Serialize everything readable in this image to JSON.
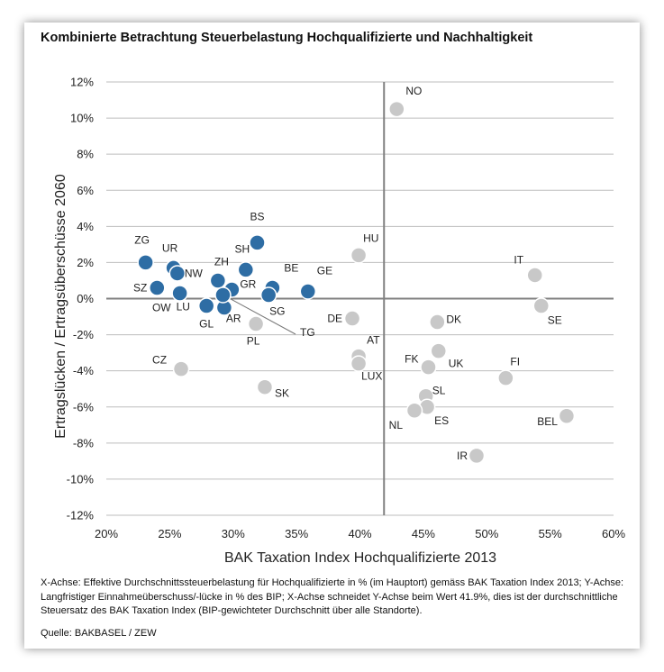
{
  "title": "Kombinierte Betrachtung Steuerbelastung Hochqualifizierte und Nachhaltigkeit",
  "footnote": "X-Achse: Effektive Durchschnittssteuerbelastung für Hochqualifizierte in % (im Hauptort) gemäss BAK Taxation Index 2013; Y-Achse: Langfristiger Einnahmeüberschuss/-lücke in % des BIP; X-Achse schneidet Y-Achse beim Wert 41.9%, dies ist der durchschnittliche Steuersatz des BAK Taxation Index (BIP-gewichteter Durchschnitt über alle Standorte).",
  "source": "Quelle: BAKBASEL / ZEW",
  "colors": {
    "swiss": "#2e6da4",
    "international": "#c8c8c8",
    "grid": "#bdbdbd",
    "axis": "#808080"
  },
  "chart_data": {
    "type": "scatter",
    "xlabel": "BAK Taxation Index Hochqualifizierte 2013",
    "ylabel": "Ertragslücken / Ertragsüberschüsse 2060",
    "xlim": [
      20,
      60
    ],
    "ylim": [
      -12,
      12
    ],
    "x_ticks": [
      "20%",
      "25%",
      "30%",
      "35%",
      "40%",
      "45%",
      "50%",
      "55%",
      "60%"
    ],
    "y_ticks": [
      "12%",
      "10%",
      "8%",
      "6%",
      "4%",
      "2%",
      "0%",
      "-2%",
      "-4%",
      "-6%",
      "-8%",
      "-10%",
      "-12%"
    ],
    "axis_cross_x": 41.9,
    "grid": "horizontal",
    "series": [
      {
        "color": "#2e6da4",
        "points": [
          {
            "label": "BS",
            "x": 31.9,
            "y": 3.1
          },
          {
            "label": "ZG",
            "x": 23.1,
            "y": 2.0
          },
          {
            "label": "UR",
            "x": 25.3,
            "y": 1.7
          },
          {
            "label": "NW",
            "x": 25.6,
            "y": 1.4
          },
          {
            "label": "SZ",
            "x": 24.0,
            "y": 0.6
          },
          {
            "label": "OW",
            "x": 25.8,
            "y": 0.3
          },
          {
            "label": "LU",
            "x": 25.8,
            "y": 0.3
          },
          {
            "label": "SH",
            "x": 31.0,
            "y": 1.6
          },
          {
            "label": "ZH",
            "x": 28.8,
            "y": 1.0
          },
          {
            "label": "GR",
            "x": 29.9,
            "y": 0.5
          },
          {
            "label": "BE",
            "x": 33.1,
            "y": 0.6
          },
          {
            "label": "SG",
            "x": 32.8,
            "y": 0.2
          },
          {
            "label": "GE",
            "x": 35.9,
            "y": 0.4
          },
          {
            "label": "GL",
            "x": 27.9,
            "y": -0.4
          },
          {
            "label": "AR",
            "x": 29.3,
            "y": -0.5
          },
          {
            "label": "TG",
            "x": 29.2,
            "y": 0.2
          }
        ]
      },
      {
        "color": "#c8c8c8",
        "points": [
          {
            "label": "NO",
            "x": 42.9,
            "y": 10.5
          },
          {
            "label": "HU",
            "x": 39.9,
            "y": 2.4
          },
          {
            "label": "IT",
            "x": 53.8,
            "y": 1.3
          },
          {
            "label": "SE",
            "x": 54.3,
            "y": -0.4
          },
          {
            "label": "DE",
            "x": 39.4,
            "y": -1.1
          },
          {
            "label": "DK",
            "x": 46.1,
            "y": -1.3
          },
          {
            "label": "PL",
            "x": 31.8,
            "y": -1.4
          },
          {
            "label": "CZ",
            "x": 25.9,
            "y": -3.9
          },
          {
            "label": "AT",
            "x": 39.9,
            "y": -3.2
          },
          {
            "label": "LUX",
            "x": 39.9,
            "y": -3.6
          },
          {
            "label": "FK",
            "x": 45.4,
            "y": -3.8
          },
          {
            "label": "UK",
            "x": 46.2,
            "y": -2.9
          },
          {
            "label": "FI",
            "x": 51.5,
            "y": -4.4
          },
          {
            "label": "SK",
            "x": 32.5,
            "y": -4.9
          },
          {
            "label": "SL",
            "x": 45.2,
            "y": -5.4
          },
          {
            "label": "ES",
            "x": 45.3,
            "y": -6.0
          },
          {
            "label": "NL",
            "x": 44.3,
            "y": -6.2
          },
          {
            "label": "BEL",
            "x": 56.3,
            "y": -6.5
          },
          {
            "label": "IR",
            "x": 49.2,
            "y": -8.7
          }
        ]
      }
    ]
  }
}
